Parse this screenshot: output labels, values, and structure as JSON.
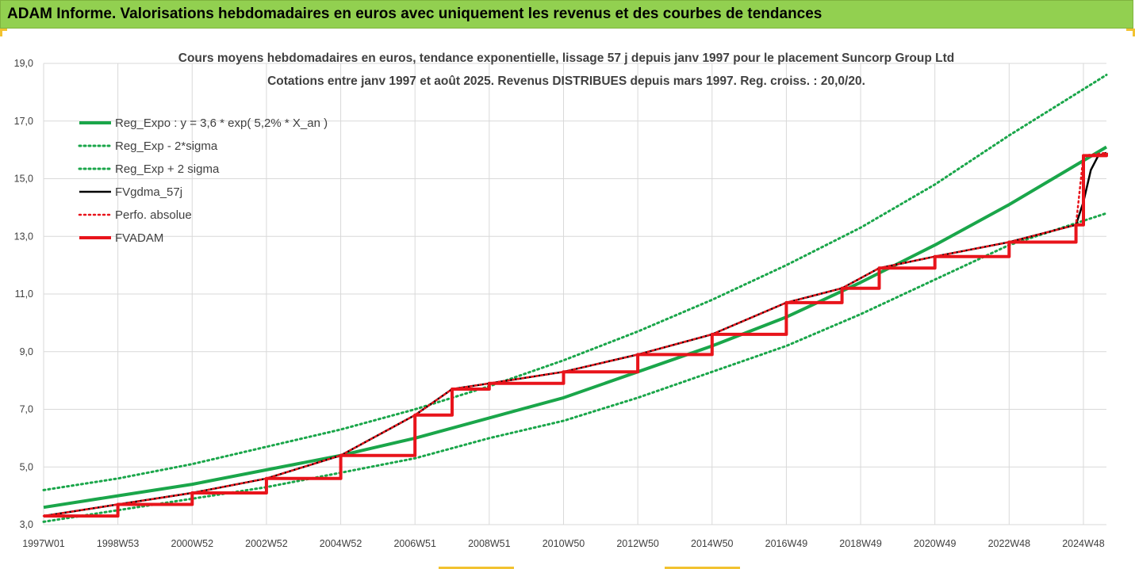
{
  "header": {
    "title": "ADAM Informe. Valorisations hebdomadaires en euros avec uniquement les revenus et des courbes de tendances"
  },
  "colors": {
    "header_bg": "#92d050",
    "green": "#1aa64a",
    "black": "#000000",
    "red": "#e8141b",
    "grid": "#d9d9d9",
    "text": "#404040"
  },
  "chart_data": {
    "type": "line",
    "title": "Cours moyens hebdomadaires en euros, tendance exponentielle, lissage 57 j depuis janv 1997 pour le placement Suncorp Group Ltd",
    "subtitle": "Cotations entre janv 1997 et août 2025. Revenus DISTRIBUES depuis mars 1997. Reg. croiss. : 20,0/20.",
    "xlabel": "",
    "ylabel": "",
    "ylim": [
      3.0,
      19.0
    ],
    "xlim": [
      1997.0,
      2025.62
    ],
    "y_ticks": [
      "3,0",
      "5,0",
      "7,0",
      "9,0",
      "11,0",
      "13,0",
      "15,0",
      "17,0",
      "19,0"
    ],
    "x_ticks": [
      {
        "label": "1997W01",
        "x": 1997.0
      },
      {
        "label": "1998W53",
        "x": 1999.0
      },
      {
        "label": "2000W52",
        "x": 2001.0
      },
      {
        "label": "2002W52",
        "x": 2003.0
      },
      {
        "label": "2004W52",
        "x": 2005.0
      },
      {
        "label": "2006W51",
        "x": 2007.0
      },
      {
        "label": "2008W51",
        "x": 2009.0
      },
      {
        "label": "2010W50",
        "x": 2011.0
      },
      {
        "label": "2012W50",
        "x": 2013.0
      },
      {
        "label": "2014W50",
        "x": 2015.0
      },
      {
        "label": "2016W49",
        "x": 2017.0
      },
      {
        "label": "2018W49",
        "x": 2019.0
      },
      {
        "label": "2020W49",
        "x": 2021.0
      },
      {
        "label": "2022W48",
        "x": 2023.0
      },
      {
        "label": "2024W48",
        "x": 2025.0
      }
    ],
    "grid": true,
    "legend_position": "top-left",
    "series": [
      {
        "name": "Reg_Expo : y = 3,6 * exp( 5,2% *  X_an )",
        "color": "#1aa64a",
        "style": "solid",
        "x": [
          1997.0,
          1999.0,
          2001.0,
          2003.0,
          2005.0,
          2007.0,
          2009.0,
          2011.0,
          2013.0,
          2015.0,
          2017.0,
          2019.0,
          2021.0,
          2023.0,
          2025.62
        ],
        "y": [
          3.6,
          4.0,
          4.4,
          4.9,
          5.4,
          6.0,
          6.7,
          7.4,
          8.3,
          9.2,
          10.2,
          11.4,
          12.7,
          14.1,
          16.1
        ]
      },
      {
        "name": "Reg_Exp - 2*sigma",
        "color": "#1aa64a",
        "style": "dotted",
        "x": [
          1997.0,
          1999.0,
          2001.0,
          2003.0,
          2005.0,
          2007.0,
          2009.0,
          2011.0,
          2013.0,
          2015.0,
          2017.0,
          2019.0,
          2021.0,
          2023.0,
          2025.62
        ],
        "y": [
          3.1,
          3.5,
          3.9,
          4.3,
          4.8,
          5.3,
          6.0,
          6.6,
          7.4,
          8.3,
          9.2,
          10.3,
          11.5,
          12.7,
          13.8
        ]
      },
      {
        "name": "Reg_Exp + 2 sigma",
        "color": "#1aa64a",
        "style": "dotted",
        "x": [
          1997.0,
          1999.0,
          2001.0,
          2003.0,
          2005.0,
          2007.0,
          2009.0,
          2011.0,
          2013.0,
          2015.0,
          2017.0,
          2019.0,
          2021.0,
          2023.0,
          2025.62
        ],
        "y": [
          4.2,
          4.6,
          5.1,
          5.7,
          6.3,
          7.0,
          7.8,
          8.7,
          9.7,
          10.8,
          12.0,
          13.3,
          14.8,
          16.5,
          18.6
        ]
      },
      {
        "name": "FVgdma_57j",
        "color": "#000000",
        "style": "solid",
        "x": [
          1997.0,
          1999.0,
          2001.0,
          2003.0,
          2005.0,
          2007.0,
          2008.0,
          2009.0,
          2011.0,
          2013.0,
          2015.0,
          2017.0,
          2018.5,
          2019.5,
          2021.0,
          2023.0,
          2024.8,
          2025.0,
          2025.2,
          2025.4,
          2025.62
        ],
        "y": [
          3.3,
          3.7,
          4.1,
          4.6,
          5.4,
          6.8,
          7.7,
          7.9,
          8.3,
          8.9,
          9.6,
          10.7,
          11.2,
          11.9,
          12.3,
          12.8,
          13.4,
          14.2,
          15.3,
          15.8,
          15.9
        ]
      },
      {
        "name": "Perfo. absolue",
        "color": "#e8141b",
        "style": "dotted",
        "x": [
          1997.0,
          1999.0,
          2001.0,
          2003.0,
          2005.0,
          2007.0,
          2008.0,
          2009.0,
          2011.0,
          2013.0,
          2015.0,
          2017.0,
          2018.5,
          2019.5,
          2021.0,
          2023.0,
          2024.8,
          2025.0,
          2025.62
        ],
        "y": [
          3.3,
          3.7,
          4.1,
          4.6,
          5.4,
          6.8,
          7.7,
          7.9,
          8.3,
          8.9,
          9.6,
          10.7,
          11.2,
          11.9,
          12.3,
          12.8,
          13.4,
          15.8,
          15.9
        ]
      },
      {
        "name": "FVADAM",
        "color": "#e8141b",
        "style": "solid",
        "x": [
          1997.0,
          1999.0,
          2001.0,
          2003.0,
          2005.0,
          2007.0,
          2008.0,
          2009.0,
          2011.0,
          2013.0,
          2015.0,
          2017.0,
          2018.5,
          2019.5,
          2021.0,
          2023.0,
          2024.8,
          2025.0,
          2025.62
        ],
        "y": [
          3.3,
          3.7,
          4.1,
          4.6,
          5.4,
          6.8,
          7.7,
          7.9,
          8.3,
          8.9,
          9.6,
          10.7,
          11.2,
          11.9,
          12.3,
          12.8,
          13.4,
          15.8,
          15.9
        ]
      }
    ]
  }
}
